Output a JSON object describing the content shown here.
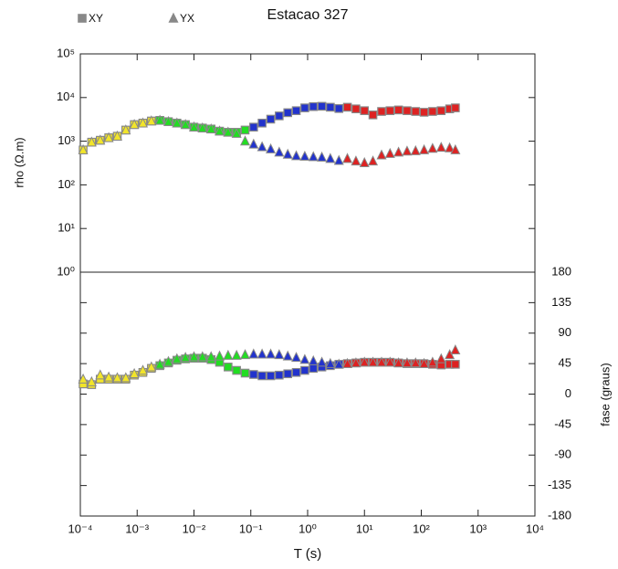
{
  "chart_data": [
    {
      "type": "scatter",
      "title": "Estacao 327",
      "ylabel": "rho (Ω.m)",
      "ylog": true,
      "xlog": true,
      "xlim": [
        0.0001,
        10000
      ],
      "ylim": [
        1,
        100000
      ],
      "yticks": [
        {
          "value": 1,
          "label": "10⁰"
        },
        {
          "value": 10,
          "label": "10¹"
        },
        {
          "value": 100,
          "label": "10²"
        },
        {
          "value": 1000,
          "label": "10³"
        },
        {
          "value": 10000,
          "label": "10⁴"
        },
        {
          "value": 100000,
          "label": "10⁵"
        }
      ],
      "legend": "top-left",
      "legend_color": "#888888",
      "point_colors": [
        "#f2e52a",
        "#f2e52a",
        "#f2e52a",
        "#f2e52a",
        "#f2e52a",
        "#f2e52a",
        "#f2e52a",
        "#f2e52a",
        "#f2e52a",
        "#22dd22",
        "#22dd22",
        "#22dd22",
        "#22dd22",
        "#22dd22",
        "#22dd22",
        "#22dd22",
        "#22dd22",
        "#22dd22",
        "#22dd22",
        "#22dd22",
        "#2233cc",
        "#2233cc",
        "#2233cc",
        "#2233cc",
        "#2233cc",
        "#2233cc",
        "#2233cc",
        "#2233cc",
        "#2233cc",
        "#2233cc",
        "#2233cc",
        "#dd2222",
        "#dd2222",
        "#dd2222",
        "#dd2222",
        "#dd2222",
        "#dd2222",
        "#dd2222",
        "#dd2222",
        "#dd2222",
        "#dd2222",
        "#dd2222",
        "#dd2222",
        "#dd2222",
        "#dd2222"
      ],
      "x": [
        0.000112,
        0.000158,
        0.000224,
        0.000316,
        0.000447,
        0.000631,
        0.000891,
        0.00126,
        0.00178,
        0.00251,
        0.00355,
        0.00501,
        0.00708,
        0.01,
        0.0141,
        0.02,
        0.0282,
        0.0398,
        0.0562,
        0.0794,
        0.112,
        0.158,
        0.224,
        0.316,
        0.447,
        0.631,
        0.891,
        1.26,
        1.78,
        2.51,
        3.55,
        5.01,
        7.08,
        10,
        14.1,
        20,
        28.2,
        39.8,
        56.2,
        79.4,
        112,
        158,
        224,
        316,
        398
      ],
      "series": [
        {
          "name": "XY",
          "marker": "square",
          "values": [
            630,
            950,
            1050,
            1200,
            1300,
            1800,
            2400,
            2600,
            2900,
            3000,
            2800,
            2600,
            2400,
            2100,
            2000,
            1900,
            1700,
            1600,
            1600,
            1800,
            2100,
            2600,
            3200,
            3800,
            4500,
            5000,
            5800,
            6200,
            6300,
            6000,
            5600,
            6000,
            5500,
            5000,
            4000,
            4800,
            5000,
            5200,
            5000,
            4800,
            4600,
            4800,
            5000,
            5500,
            5800
          ]
        },
        {
          "name": "YX",
          "marker": "triangle",
          "values": [
            630,
            950,
            1050,
            1200,
            1300,
            1800,
            2400,
            2600,
            2900,
            3000,
            2800,
            2600,
            2400,
            2100,
            2000,
            1900,
            1700,
            1600,
            1500,
            1000,
            850,
            740,
            660,
            560,
            500,
            460,
            450,
            440,
            430,
            400,
            360,
            400,
            350,
            320,
            350,
            480,
            520,
            560,
            590,
            600,
            630,
            680,
            720,
            700,
            630
          ]
        }
      ]
    },
    {
      "type": "scatter",
      "xlabel": "T (s)",
      "ylabel": "fase (graus)",
      "xlog": true,
      "xlim": [
        0.0001,
        10000
      ],
      "ylim": [
        -180,
        180
      ],
      "xticks": [
        {
          "value": 0.0001,
          "label": "10⁻⁴"
        },
        {
          "value": 0.001,
          "label": "10⁻³"
        },
        {
          "value": 0.01,
          "label": "10⁻²"
        },
        {
          "value": 0.1,
          "label": "10⁻¹"
        },
        {
          "value": 1,
          "label": "10⁰"
        },
        {
          "value": 10,
          "label": "10¹"
        },
        {
          "value": 100,
          "label": "10²"
        },
        {
          "value": 1000,
          "label": "10³"
        },
        {
          "value": 10000,
          "label": "10⁴"
        }
      ],
      "yticks": [
        -180,
        -135,
        -90,
        -45,
        0,
        45,
        90,
        135,
        180
      ],
      "point_colors": [
        "#f2e52a",
        "#f2e52a",
        "#f2e52a",
        "#f2e52a",
        "#f2e52a",
        "#f2e52a",
        "#f2e52a",
        "#f2e52a",
        "#f2e52a",
        "#22dd22",
        "#22dd22",
        "#22dd22",
        "#22dd22",
        "#22dd22",
        "#22dd22",
        "#22dd22",
        "#22dd22",
        "#22dd22",
        "#22dd22",
        "#22dd22",
        "#2233cc",
        "#2233cc",
        "#2233cc",
        "#2233cc",
        "#2233cc",
        "#2233cc",
        "#2233cc",
        "#2233cc",
        "#2233cc",
        "#2233cc",
        "#2233cc",
        "#dd2222",
        "#dd2222",
        "#dd2222",
        "#dd2222",
        "#dd2222",
        "#dd2222",
        "#dd2222",
        "#dd2222",
        "#dd2222",
        "#dd2222",
        "#dd2222",
        "#dd2222",
        "#dd2222",
        "#dd2222"
      ],
      "x": [
        0.000112,
        0.000158,
        0.000224,
        0.000316,
        0.000447,
        0.000631,
        0.000891,
        0.00126,
        0.00178,
        0.00251,
        0.00355,
        0.00501,
        0.00708,
        0.01,
        0.0141,
        0.02,
        0.0282,
        0.0398,
        0.0562,
        0.0794,
        0.112,
        0.158,
        0.224,
        0.316,
        0.447,
        0.631,
        0.891,
        1.26,
        1.78,
        2.51,
        3.55,
        5.01,
        7.08,
        10,
        14.1,
        20,
        28.2,
        39.8,
        56.2,
        79.4,
        112,
        158,
        224,
        316,
        398
      ],
      "series": [
        {
          "name": "XY",
          "marker": "square",
          "values": [
            15,
            14,
            22,
            22,
            22,
            22,
            28,
            32,
            38,
            42,
            46,
            50,
            52,
            53,
            53,
            51,
            47,
            40,
            35,
            31,
            29,
            27,
            27,
            28,
            30,
            32,
            35,
            38,
            40,
            42,
            44,
            45,
            46,
            47,
            47,
            47,
            47,
            46,
            45,
            45,
            45,
            44,
            43,
            44,
            44
          ]
        },
        {
          "name": "YX",
          "marker": "triangle",
          "values": [
            22,
            18,
            28,
            25,
            24,
            24,
            30,
            35,
            40,
            44,
            48,
            52,
            54,
            55,
            55,
            55,
            56,
            57,
            57,
            58,
            59,
            59,
            59,
            58,
            56,
            54,
            51,
            49,
            47,
            45,
            44,
            45,
            46,
            47,
            47,
            47,
            47,
            46,
            46,
            46,
            45,
            47,
            52,
            58,
            65
          ]
        }
      ]
    }
  ]
}
